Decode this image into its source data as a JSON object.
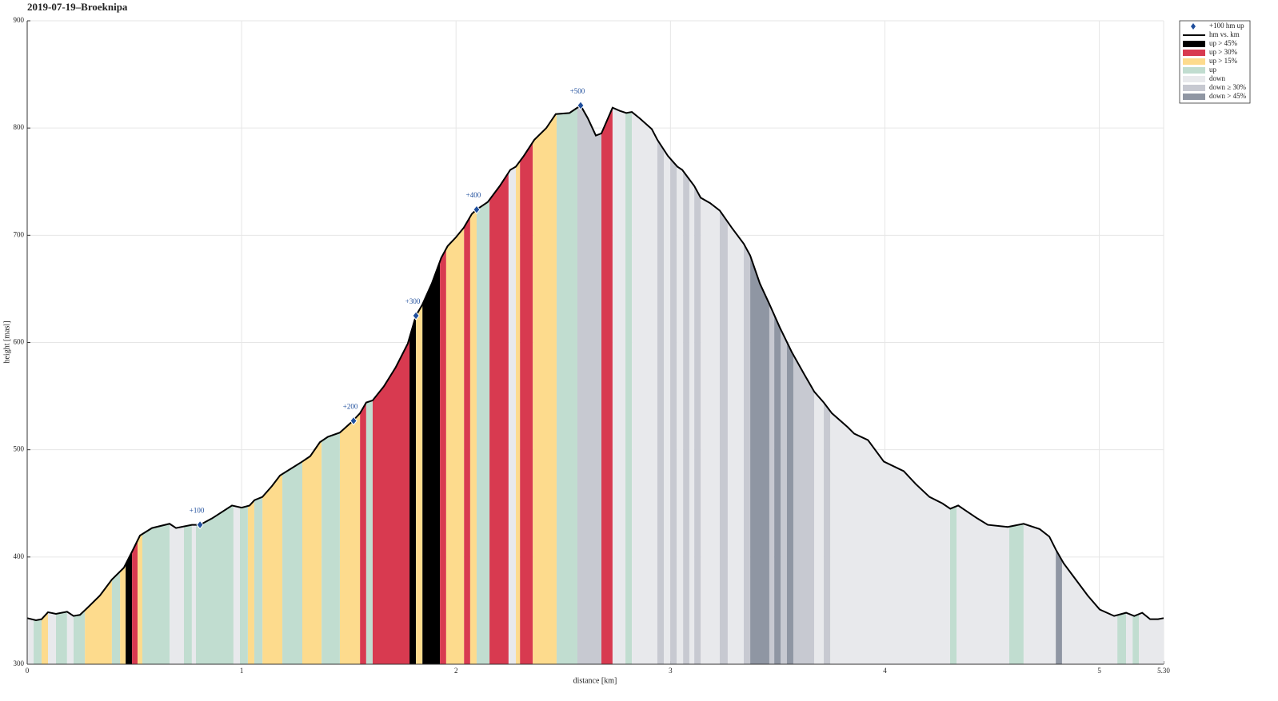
{
  "chart_data": {
    "type": "elevation-profile",
    "title": "2019-07-19–Broeknipa",
    "x_label": "distance [km]",
    "y_label": "height [masl]",
    "xlim": [
      0,
      5.3
    ],
    "ylim": [
      300,
      900
    ],
    "xticks": [
      0,
      1,
      2,
      3,
      4,
      5,
      {
        "value": 5.3,
        "label": "5.30"
      }
    ],
    "yticks": [
      300,
      400,
      500,
      600,
      700,
      800,
      900
    ],
    "grid": true,
    "legend": "upper right outside",
    "profile": {
      "name": "hm vs. km",
      "color": "#000000",
      "x": [
        0,
        0.041,
        0.067,
        0.097,
        0.134,
        0.186,
        0.216,
        0.246,
        0.283,
        0.339,
        0.395,
        0.451,
        0.489,
        0.526,
        0.582,
        0.664,
        0.694,
        0.768,
        0.806,
        0.862,
        0.955,
        1.0,
        1.037,
        1.06,
        1.097,
        1.141,
        1.179,
        1.235,
        1.283,
        1.32,
        1.365,
        1.402,
        1.458,
        1.514,
        1.552,
        1.581,
        1.611,
        1.663,
        1.719,
        1.775,
        1.813,
        1.842,
        1.887,
        1.931,
        1.961,
        1.999,
        2.036,
        2.074,
        2.096,
        2.148,
        2.204,
        2.253,
        2.279,
        2.316,
        2.365,
        2.421,
        2.465,
        2.529,
        2.581,
        2.615,
        2.652,
        2.678,
        2.73,
        2.764,
        2.794,
        2.82,
        2.857,
        2.913,
        2.939,
        2.988,
        3.032,
        3.055,
        3.111,
        3.141,
        3.185,
        3.23,
        3.286,
        3.342,
        3.372,
        3.417,
        3.461,
        3.51,
        3.566,
        3.622,
        3.671,
        3.715,
        3.753,
        3.827,
        3.857,
        3.921,
        3.995,
        4.088,
        4.144,
        4.208,
        4.268,
        4.305,
        4.342,
        4.386,
        4.431,
        4.48,
        4.573,
        4.647,
        4.722,
        4.767,
        4.797,
        4.834,
        4.89,
        4.946,
        5.002,
        5.069,
        5.125,
        5.163,
        5.2,
        5.237,
        5.274,
        5.3
      ],
      "values": [
        343,
        341,
        342,
        348.5,
        347,
        349,
        345,
        346,
        353,
        364,
        379,
        390,
        405,
        420,
        427,
        431,
        427,
        430,
        430,
        436,
        448,
        446,
        448,
        453,
        456,
        466,
        476,
        483,
        489,
        494,
        507,
        512,
        516,
        526,
        534,
        544,
        546,
        559,
        577,
        599,
        625,
        635,
        655,
        679,
        690,
        698,
        707,
        720,
        724,
        731,
        746,
        761,
        764,
        774,
        789,
        800,
        813,
        814,
        821,
        809,
        793,
        795,
        819,
        816,
        814,
        815,
        809,
        799,
        789,
        774,
        764,
        761,
        746,
        735,
        730,
        723,
        707,
        692,
        681,
        655,
        636,
        614,
        591,
        571,
        554,
        544,
        534,
        521,
        515,
        509,
        489,
        480,
        468,
        456,
        450,
        445,
        448,
        442,
        436,
        430,
        428,
        431,
        426,
        419,
        407,
        394,
        379,
        364,
        351,
        345,
        348,
        345,
        348,
        342,
        342,
        343
      ]
    },
    "markers": {
      "name": "+100 hm up",
      "color": "#1f4e9c",
      "x": [
        0.806,
        1.522,
        1.813,
        2.096,
        2.581
      ],
      "values": [
        430,
        527,
        625,
        724,
        821
      ],
      "labels": [
        "+100",
        "+200",
        "+300",
        "+400",
        "+500"
      ]
    },
    "series": [
      {
        "name": "up > 45%",
        "color": "#000000",
        "spans": [
          [
            0.459,
            0.489
          ],
          [
            1.783,
            1.813
          ],
          [
            1.843,
            1.925
          ]
        ]
      },
      {
        "name": "up > 30%",
        "color": "#d83a50",
        "spans": [
          [
            0.489,
            0.515
          ],
          [
            1.552,
            1.581
          ],
          [
            1.611,
            1.783
          ],
          [
            1.925,
            1.954
          ],
          [
            2.037,
            2.066
          ],
          [
            2.156,
            2.245
          ],
          [
            2.298,
            2.358
          ],
          [
            2.678,
            2.73
          ]
        ]
      },
      {
        "name": "up > 15%",
        "color": "#fddb8d",
        "spans": [
          [
            0.067,
            0.097
          ],
          [
            0.269,
            0.395
          ],
          [
            0.433,
            0.459
          ],
          [
            0.515,
            0.537
          ],
          [
            1.029,
            1.059
          ],
          [
            1.097,
            1.19
          ],
          [
            1.283,
            1.373
          ],
          [
            1.458,
            1.552
          ],
          [
            1.813,
            1.843
          ],
          [
            1.954,
            2.037
          ],
          [
            2.066,
            2.096
          ],
          [
            2.279,
            2.298
          ],
          [
            2.358,
            2.469
          ]
        ]
      },
      {
        "name": "up",
        "color": "#c1ddd0",
        "spans": [
          [
            0.03,
            0.067
          ],
          [
            0.134,
            0.186
          ],
          [
            0.216,
            0.269
          ],
          [
            0.395,
            0.433
          ],
          [
            0.537,
            0.664
          ],
          [
            0.731,
            0.768
          ],
          [
            0.787,
            0.962
          ],
          [
            0.992,
            1.029
          ],
          [
            1.059,
            1.097
          ],
          [
            1.19,
            1.283
          ],
          [
            1.373,
            1.458
          ],
          [
            1.581,
            1.611
          ],
          [
            2.096,
            2.156
          ],
          [
            2.469,
            2.566
          ],
          [
            2.79,
            2.82
          ],
          [
            4.304,
            4.334
          ],
          [
            4.58,
            4.647
          ],
          [
            5.084,
            5.125
          ],
          [
            5.155,
            5.185
          ]
        ]
      },
      {
        "name": "down",
        "color": "#e8e9ec",
        "spans": [
          [
            0,
            0.03
          ],
          [
            0.097,
            0.134
          ],
          [
            0.186,
            0.216
          ],
          [
            0.664,
            0.731
          ],
          [
            0.768,
            0.787
          ],
          [
            0.962,
            0.992
          ],
          [
            2.245,
            2.279
          ],
          [
            2.73,
            2.79
          ],
          [
            2.82,
            2.939
          ],
          [
            2.969,
            2.999
          ],
          [
            3.029,
            3.059
          ],
          [
            3.088,
            3.111
          ],
          [
            3.141,
            3.23
          ],
          [
            3.267,
            3.342
          ],
          [
            3.67,
            3.715
          ],
          [
            3.745,
            4.304
          ],
          [
            4.334,
            4.58
          ],
          [
            4.647,
            4.797
          ],
          [
            4.826,
            5.084
          ],
          [
            5.125,
            5.155
          ],
          [
            5.185,
            5.3
          ]
        ]
      },
      {
        "name": "down ≥ 30%",
        "color": "#c7c9d1",
        "spans": [
          [
            2.566,
            2.678
          ],
          [
            2.939,
            2.969
          ],
          [
            2.999,
            3.029
          ],
          [
            3.059,
            3.088
          ],
          [
            3.111,
            3.141
          ],
          [
            3.23,
            3.267
          ],
          [
            3.342,
            3.372
          ],
          [
            3.461,
            3.484
          ],
          [
            3.514,
            3.543
          ],
          [
            3.573,
            3.67
          ],
          [
            3.715,
            3.745
          ]
        ]
      },
      {
        "name": "down > 45%",
        "color": "#8f96a3",
        "spans": [
          [
            3.372,
            3.461
          ],
          [
            3.484,
            3.514
          ],
          [
            3.543,
            3.573
          ],
          [
            4.797,
            4.826
          ]
        ]
      }
    ]
  }
}
